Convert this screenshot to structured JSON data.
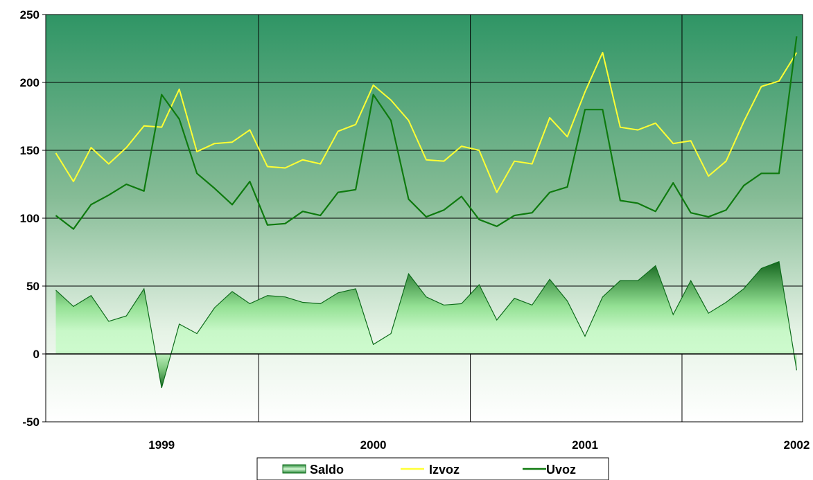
{
  "chart_data": {
    "type": "line",
    "title": "",
    "xlabel": "",
    "ylabel": "",
    "ylim": [
      -50,
      250
    ],
    "y_ticks": [
      -50,
      0,
      50,
      100,
      150,
      200,
      250
    ],
    "x_tick_labels": [
      "1999",
      "2000",
      "2001",
      "2002"
    ],
    "grid": true,
    "legend_position": "bottom",
    "background": "green vertical gradient (dark at top, light at bottom)",
    "colors": {
      "izvoz": "#ffff33",
      "uvoz": "#0e7a0e",
      "saldo_fill_light": "#c8f5c8",
      "saldo_fill_dark": "#1e7a2a",
      "plot_top": "#2f9565",
      "plot_bottom": "#ffffff"
    },
    "series": [
      {
        "name": "Saldo",
        "type": "area",
        "values": [
          47,
          35,
          43,
          24,
          28,
          48,
          -25,
          22,
          15,
          34,
          46,
          37,
          43,
          42,
          38,
          37,
          45,
          48,
          7,
          15,
          59,
          42,
          36,
          37,
          51,
          25,
          41,
          36,
          55,
          39,
          13,
          42,
          54,
          54,
          65,
          29,
          54,
          30,
          38,
          48,
          63,
          68,
          -12
        ]
      },
      {
        "name": "Izvoz",
        "type": "line",
        "values": [
          148,
          127,
          152,
          140,
          152,
          168,
          167,
          195,
          149,
          155,
          156,
          165,
          138,
          137,
          143,
          140,
          164,
          169,
          198,
          187,
          172,
          143,
          142,
          153,
          150,
          119,
          142,
          140,
          174,
          160,
          193,
          222,
          167,
          165,
          170,
          155,
          157,
          131,
          142,
          171,
          197,
          201,
          222
        ]
      },
      {
        "name": "Uvoz",
        "type": "line",
        "values": [
          102,
          92,
          110,
          117,
          125,
          120,
          191,
          173,
          133,
          122,
          110,
          127,
          95,
          96,
          105,
          102,
          119,
          121,
          191,
          172,
          114,
          101,
          106,
          116,
          99,
          94,
          102,
          104,
          119,
          123,
          180,
          180,
          113,
          111,
          105,
          126,
          104,
          101,
          106,
          124,
          133,
          133,
          234
        ]
      }
    ]
  },
  "legend": {
    "items": [
      {
        "key": "saldo",
        "label": "Saldo"
      },
      {
        "key": "izvoz",
        "label": "Izvoz"
      },
      {
        "key": "uvoz",
        "label": "Uvoz"
      }
    ]
  }
}
